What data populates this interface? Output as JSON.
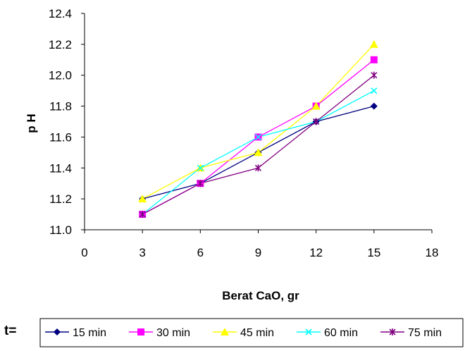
{
  "chart_data": {
    "type": "line",
    "xlabel": "Berat CaO, gr",
    "ylabel": "p H",
    "xlim": [
      0,
      18
    ],
    "ylim": [
      11.0,
      12.4
    ],
    "x_ticks": [
      "0",
      "3",
      "6",
      "9",
      "12",
      "15",
      "18"
    ],
    "y_ticks": [
      "11.0",
      "11.2",
      "11.4",
      "11.6",
      "11.8",
      "12.0",
      "12.2",
      "12.4"
    ],
    "x": [
      3,
      6,
      9,
      12,
      15
    ],
    "legend_prefix": "t=",
    "legend_position": "bottom",
    "grid": false,
    "series": [
      {
        "name": "15 min",
        "values": [
          11.2,
          11.3,
          11.5,
          11.7,
          11.8
        ],
        "color": "#000080",
        "marker": "diamond"
      },
      {
        "name": "30 min",
        "values": [
          11.1,
          11.3,
          11.6,
          11.8,
          12.1
        ],
        "color": "#ff00ff",
        "marker": "square"
      },
      {
        "name": "45 min",
        "values": [
          11.2,
          11.4,
          11.5,
          11.8,
          12.2
        ],
        "color": "#ffff00",
        "marker": "triangle"
      },
      {
        "name": "60 min",
        "values": [
          11.1,
          11.4,
          11.6,
          11.7,
          11.9
        ],
        "color": "#00ffff",
        "marker": "x"
      },
      {
        "name": "75 min",
        "values": [
          11.1,
          11.3,
          11.4,
          11.7,
          12.0
        ],
        "color": "#800080",
        "marker": "star"
      }
    ]
  }
}
